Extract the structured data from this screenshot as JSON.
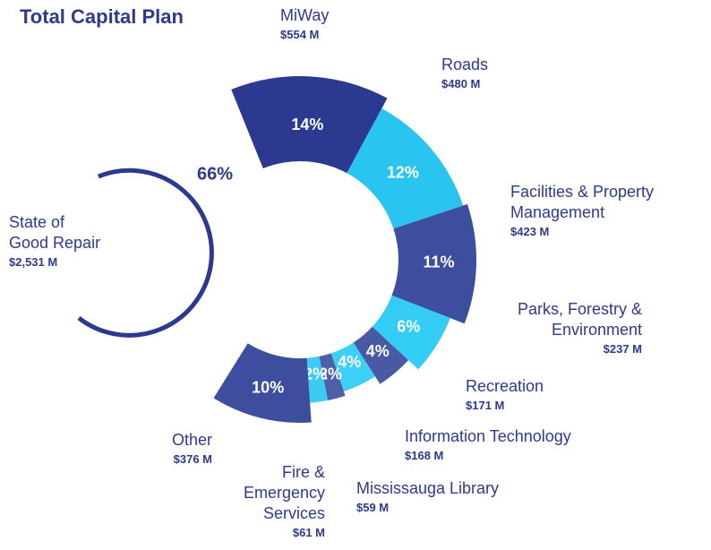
{
  "chart_data": {
    "type": "donut",
    "title": "Total Capital Plan",
    "categories": [
      "MiWay",
      "Roads",
      "Facilities & Property Management",
      "Parks, Forestry & Environment",
      "Recreation",
      "Information Technology",
      "Mississauga Library",
      "Fire & Emergency Services",
      "Other"
    ],
    "values": [
      14,
      12,
      11,
      6,
      4,
      4,
      2,
      2,
      10
    ],
    "value_labels": [
      "14%",
      "12%",
      "11%",
      "6%",
      "4%",
      "4%",
      "2%",
      "2%",
      "10%"
    ],
    "amount_labels": [
      "$554 M",
      "$480 M",
      "$423 M",
      "$237 M",
      "$171 M",
      "$168 M",
      "$59 M",
      "$61 M",
      "$376 M"
    ],
    "colors": [
      "#2b3990",
      "#29c4f0",
      "#3e4e9e",
      "#33ccf5",
      "#4a59a6",
      "#3dcff5",
      "#4e5ea8",
      "#3bcbf3",
      "#3e4e9e"
    ],
    "annotation": {
      "label": "State of Good Repair",
      "value": 66,
      "value_label": "66%",
      "amount_label": "$2,531 M"
    }
  }
}
